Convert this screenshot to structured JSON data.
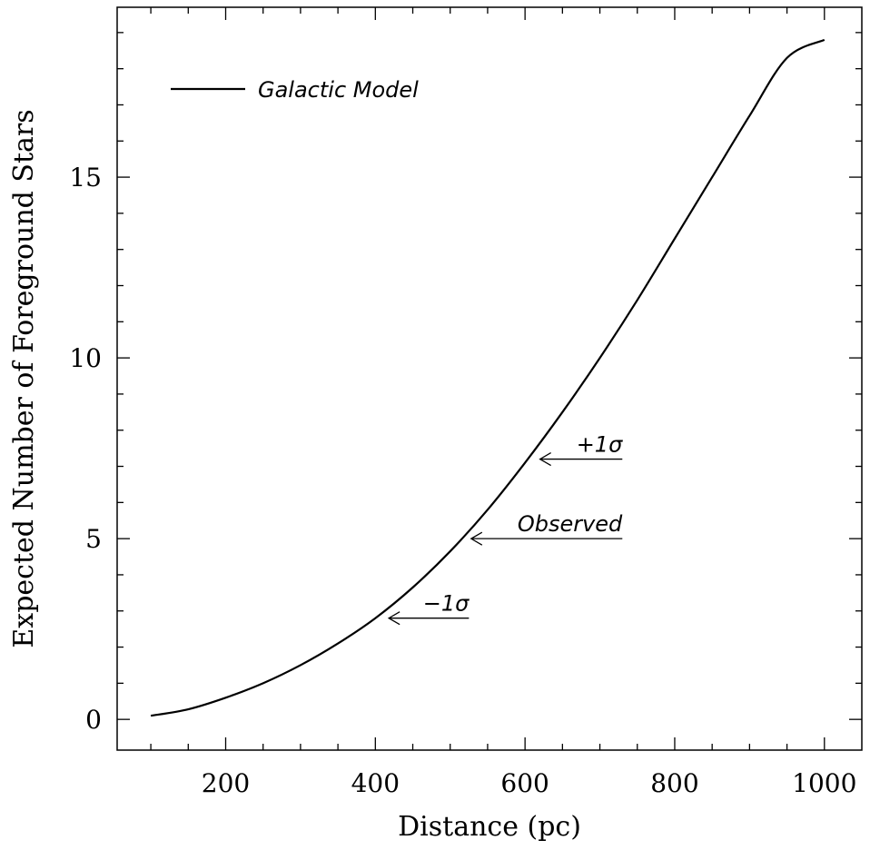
{
  "chart_data": {
    "type": "line",
    "xlabel": "Distance (pc)",
    "ylabel": "Expected Number of Foreground Stars",
    "xlim": [
      55,
      1050
    ],
    "ylim": [
      -0.85,
      19.7
    ],
    "xticks": [
      200,
      400,
      600,
      800,
      1000
    ],
    "yticks": [
      0,
      5,
      10,
      15
    ],
    "grid": false,
    "legend_position": "top-left",
    "series": [
      {
        "name": "Galactic Model",
        "color": "#000000",
        "x": [
          100,
          150,
          200,
          250,
          300,
          350,
          400,
          450,
          500,
          550,
          600,
          650,
          700,
          750,
          800,
          850,
          900,
          950,
          1000
        ],
        "y": [
          0.1,
          0.28,
          0.6,
          1.0,
          1.5,
          2.1,
          2.8,
          3.65,
          4.65,
          5.8,
          7.1,
          8.5,
          10.0,
          11.6,
          13.3,
          15.0,
          16.7,
          18.3,
          18.8
        ]
      }
    ],
    "annotations": [
      {
        "label": "+1σ",
        "x": 620,
        "y": 7.2,
        "line_to": 730
      },
      {
        "label": "Observed",
        "x": 528,
        "y": 5.0,
        "line_to": 730
      },
      {
        "label": "−1σ",
        "x": 418,
        "y": 2.8,
        "line_to": 525
      }
    ]
  }
}
